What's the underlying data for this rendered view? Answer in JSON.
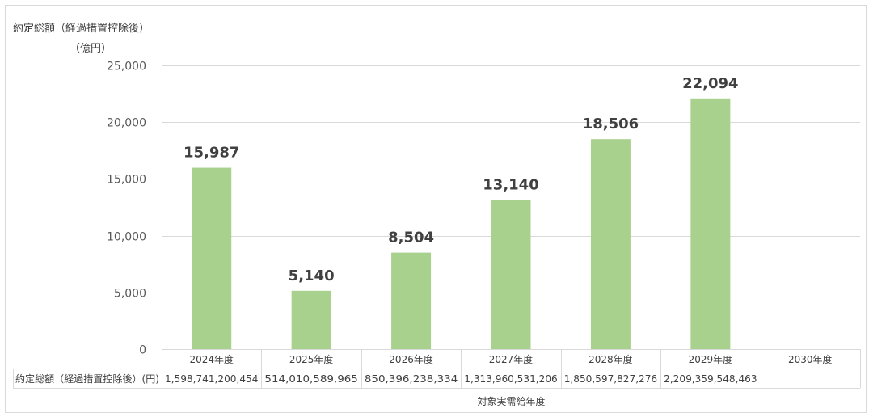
{
  "chart_data": {
    "type": "bar",
    "title": "",
    "ylabel_line1": "約定総額（経過措置控除後）",
    "ylabel_line2": "（億円）",
    "xlabel": "対象実需給年度",
    "ylim": [
      0,
      25000
    ],
    "yticks": [
      "0",
      "5,000",
      "10,000",
      "15,000",
      "20,000",
      "25,000"
    ],
    "ytick_values": [
      0,
      5000,
      10000,
      15000,
      20000,
      25000
    ],
    "bar_color": "#a9d18e",
    "categories": [
      "2024年度",
      "2025年度",
      "2026年度",
      "2027年度",
      "2028年度",
      "2029年度",
      "2030年度"
    ],
    "values": [
      15987,
      5140,
      8504,
      13140,
      18506,
      22094,
      null
    ],
    "data_labels": [
      "15,987",
      "5,140",
      "8,504",
      "13,140",
      "18,506",
      "22,094",
      ""
    ],
    "table": {
      "row_header": "約定総額（経過措置控除後）(円)",
      "cells": [
        "1,598,741,200,454",
        "514,010,589,965",
        "850,396,238,334",
        "1,313,960,531,206",
        "1,850,597,827,276",
        "2,209,359,548,463",
        ""
      ]
    }
  }
}
